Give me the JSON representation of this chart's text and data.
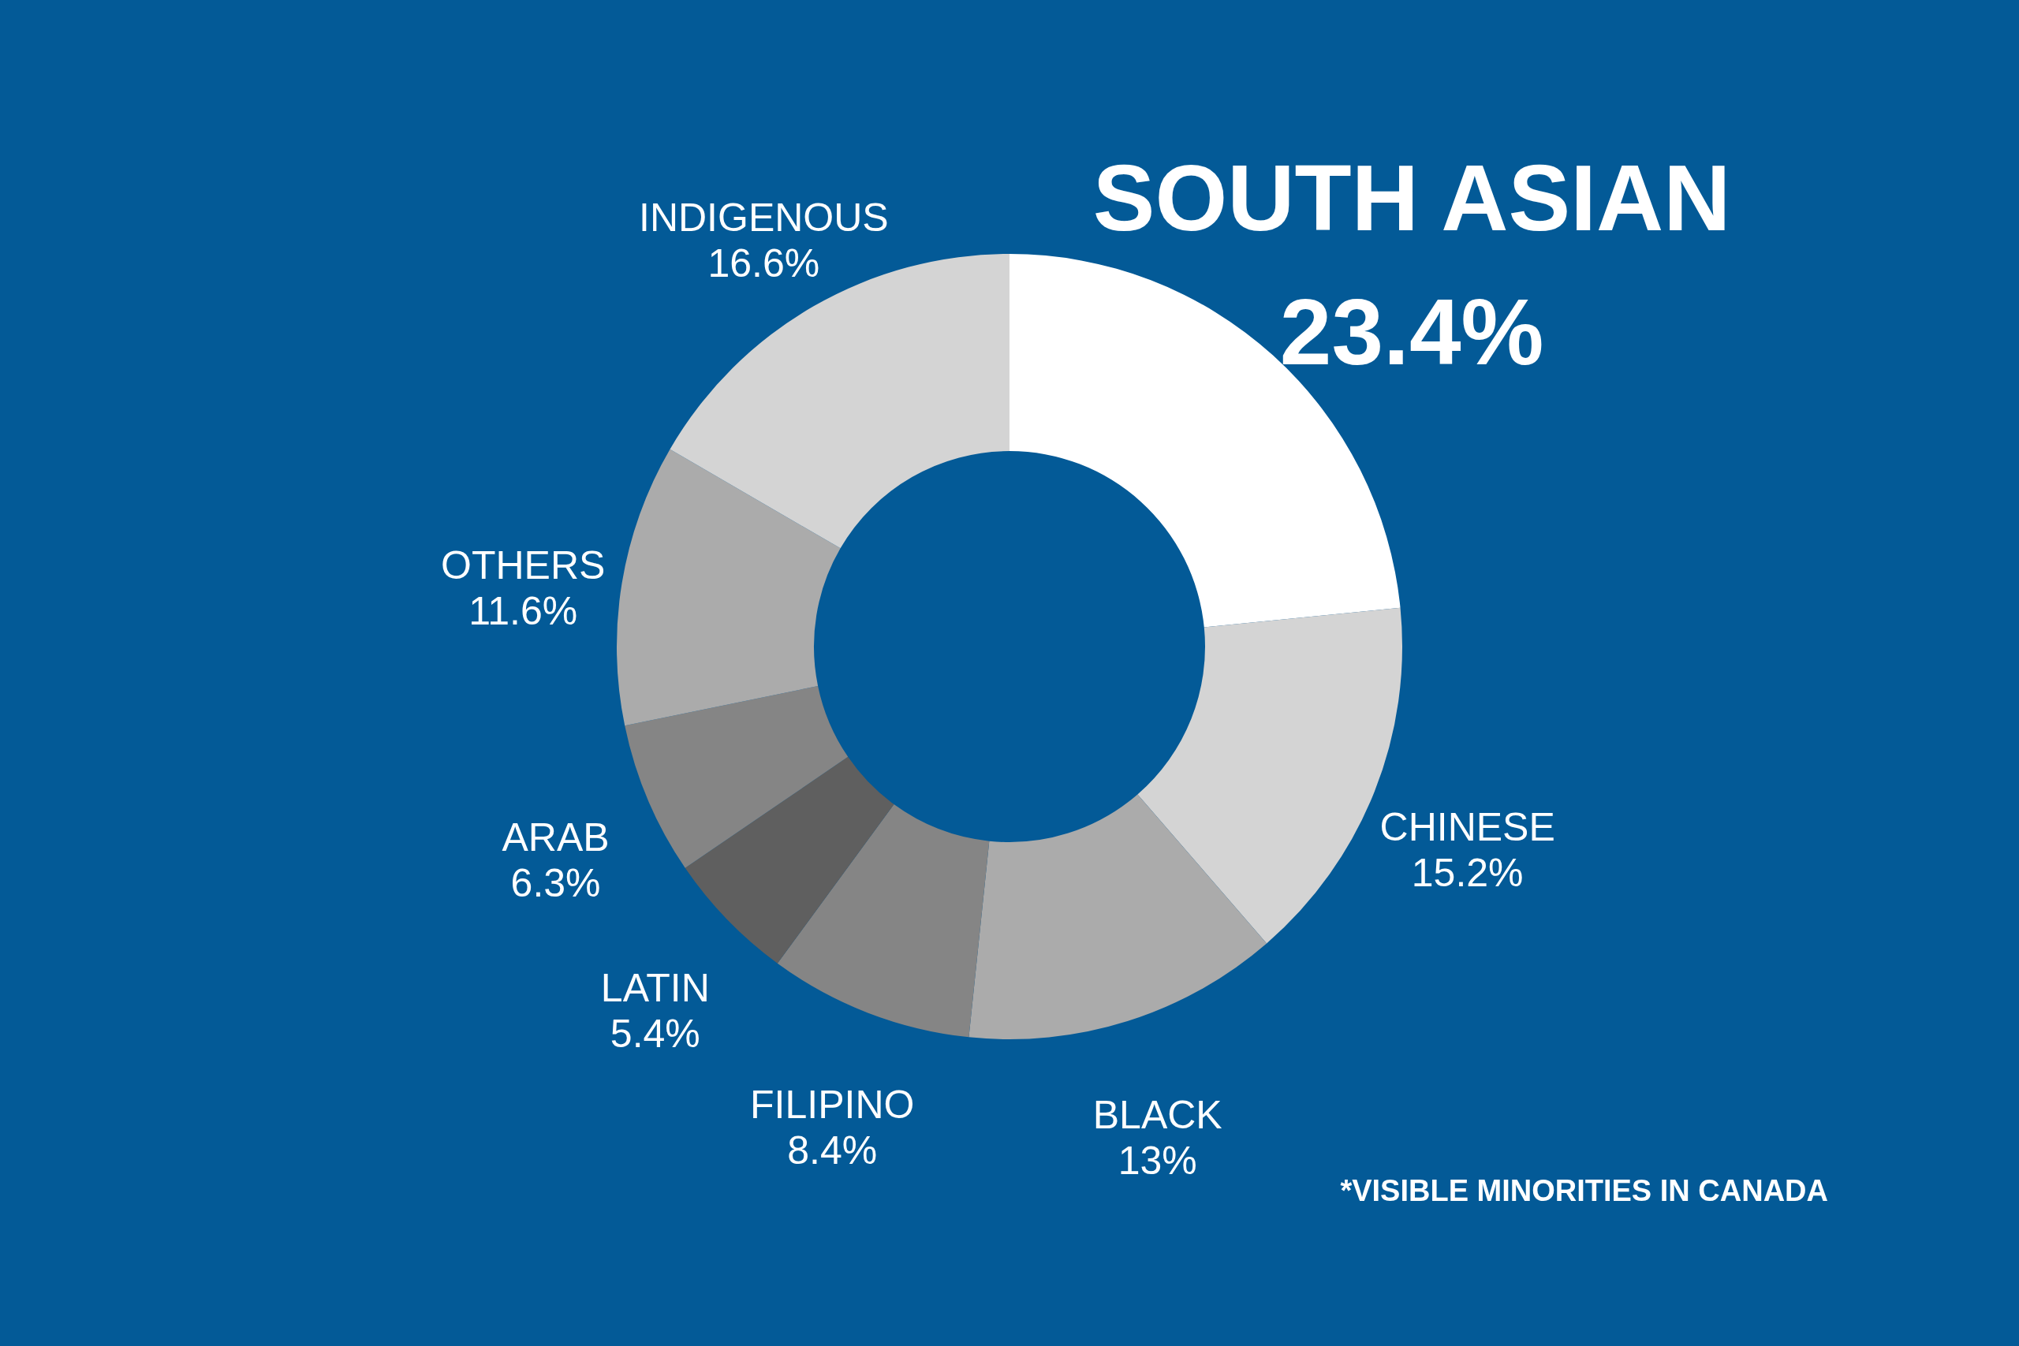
{
  "chart_data": {
    "type": "donut",
    "categories": [
      "SOUTH ASIAN",
      "CHINESE",
      "BLACK",
      "FILIPINO",
      "LATIN",
      "ARAB",
      "OTHERS",
      "INDIGENOUS"
    ],
    "values": [
      23.4,
      15.2,
      13,
      8.4,
      5.4,
      6.3,
      11.6,
      16.6
    ],
    "value_labels": [
      "23.4%",
      "15.2%",
      "13%",
      "8.4%",
      "5.4%",
      "6.3%",
      "11.6%",
      "16.6%"
    ],
    "colors": [
      "#ffffff",
      "#d4d4d4",
      "#ababab",
      "#858585",
      "#5f5f5f",
      "#858585",
      "#ababab",
      "#d4d4d4"
    ],
    "annotations": [
      "*VISIBLE MINORITIES IN CANADA"
    ]
  }
}
